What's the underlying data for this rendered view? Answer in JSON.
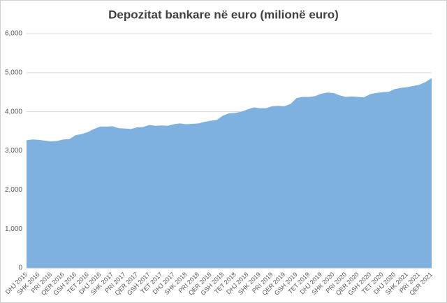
{
  "chart_data": {
    "type": "area",
    "title": "Depozitat bankare në euro (milionë euro)",
    "categories": [
      "DHJ 2015",
      null,
      "SHK 2016",
      null,
      "PRI 2016",
      null,
      "QER 2016",
      null,
      "GSH 2016",
      null,
      "TET 2016",
      null,
      "DHJ 2016",
      null,
      "SHK 2017",
      null,
      "PRI 2017",
      null,
      "QER 2017",
      null,
      "GSH 2017",
      null,
      "TET 2017",
      null,
      "DHJ 2017",
      null,
      "SHK 2018",
      null,
      "PRI 2018",
      null,
      "QER 2018",
      null,
      "GSH 2018",
      null,
      "TET 2018",
      null,
      "DHJ 2018",
      null,
      "SHK 2019",
      null,
      "PRI 2019",
      null,
      "QER 2019",
      null,
      "GSH 2019",
      null,
      "TET 2019",
      null,
      "DHJ 2019",
      null,
      "SHK 2020",
      null,
      "PRI 2020",
      null,
      "QER 2020",
      null,
      "GSH 2020",
      null,
      "TET 2020",
      null,
      "DHJ 2020",
      null,
      "SHK 2021",
      null,
      "PRI 2021",
      null,
      "QER 2021"
    ],
    "values": [
      3270,
      3290,
      3280,
      3260,
      3240,
      3250,
      3290,
      3300,
      3400,
      3430,
      3480,
      3560,
      3620,
      3620,
      3630,
      3580,
      3570,
      3560,
      3600,
      3610,
      3660,
      3640,
      3650,
      3640,
      3680,
      3700,
      3680,
      3690,
      3700,
      3740,
      3770,
      3790,
      3900,
      3960,
      3970,
      4000,
      4060,
      4110,
      4090,
      4090,
      4140,
      4150,
      4140,
      4200,
      4350,
      4380,
      4380,
      4400,
      4460,
      4490,
      4480,
      4420,
      4380,
      4390,
      4380,
      4370,
      4450,
      4480,
      4500,
      4510,
      4580,
      4610,
      4630,
      4660,
      4690,
      4760,
      4860
    ],
    "color": "#7eb0e0",
    "ylim": [
      0,
      6000
    ],
    "yticks": [
      0,
      {
        "value": 1000,
        "label": "1,000"
      },
      {
        "value": 2000,
        "label": "2,000"
      },
      {
        "value": 3000,
        "label": "3,000"
      },
      {
        "value": 4000,
        "label": "4,000"
      },
      {
        "value": 5000,
        "label": "5,000"
      },
      {
        "value": 6000,
        "label": "6,000"
      }
    ],
    "grid": true
  }
}
